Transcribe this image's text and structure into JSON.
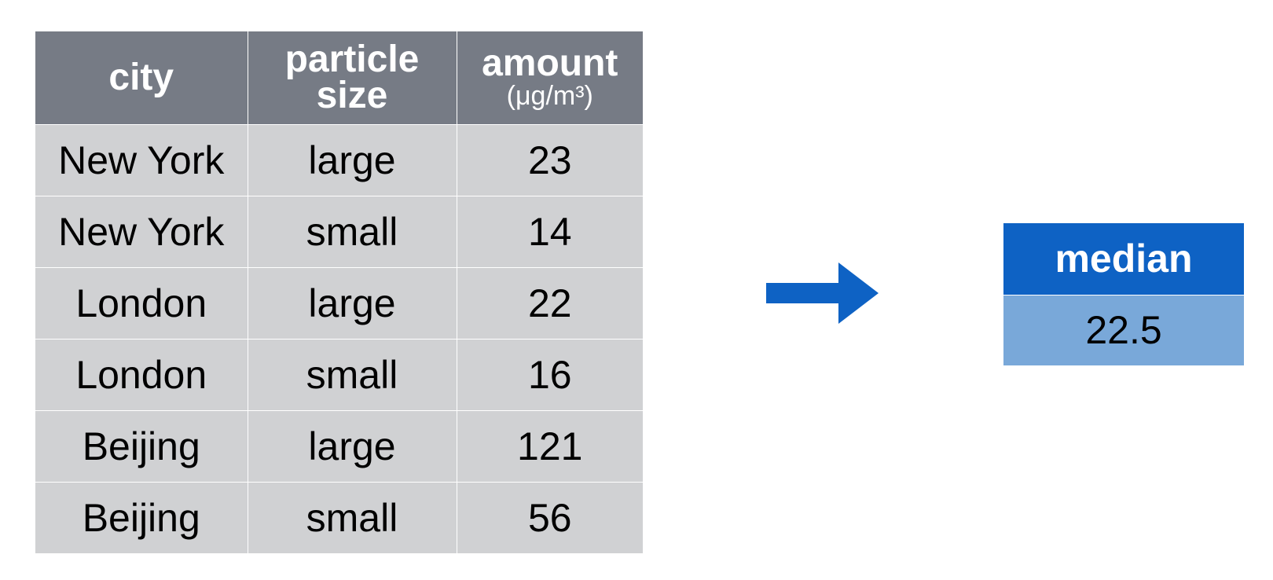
{
  "input_table": {
    "headers": [
      {
        "label": "city",
        "sub": ""
      },
      {
        "label": "particle size",
        "sub": ""
      },
      {
        "label": "amount",
        "sub": "(μg/m³)"
      }
    ],
    "rows": [
      [
        "New York",
        "large",
        "23"
      ],
      [
        "New York",
        "small",
        "14"
      ],
      [
        "London",
        "large",
        "22"
      ],
      [
        "London",
        "small",
        "16"
      ],
      [
        "Beijing",
        "large",
        "121"
      ],
      [
        "Beijing",
        "small",
        "56"
      ]
    ]
  },
  "arrow": {
    "icon": "right-arrow-icon",
    "color": "#0e62c4"
  },
  "result": {
    "header": "median",
    "value": "22.5"
  },
  "colors": {
    "input_header_bg": "#767b85",
    "input_cell_bg": "#d0d1d3",
    "result_header_bg": "#0e62c4",
    "result_value_bg": "#79a8d9"
  }
}
